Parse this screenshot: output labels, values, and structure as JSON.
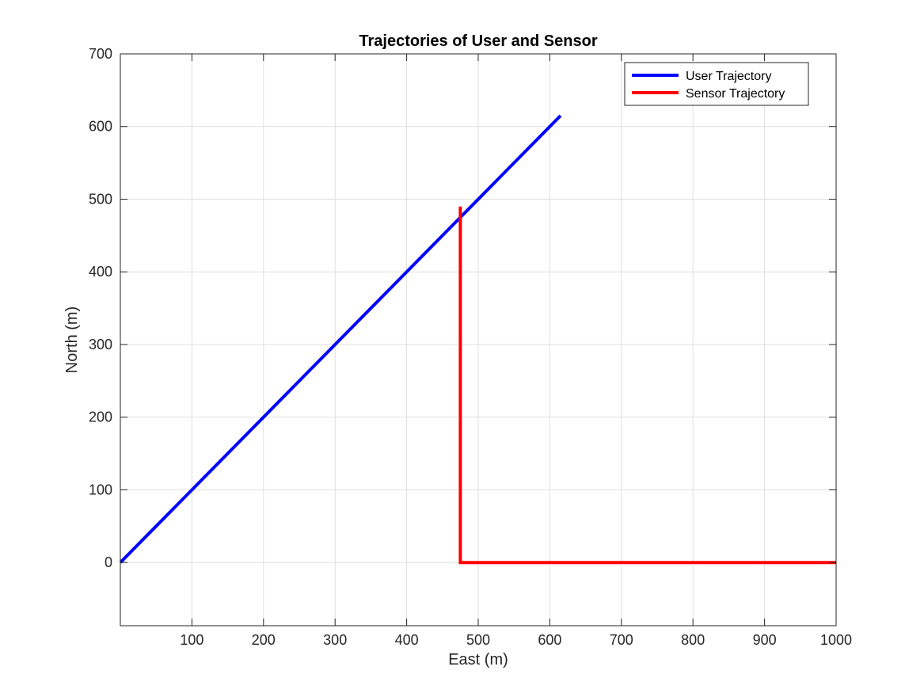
{
  "chart_data": {
    "type": "line",
    "title": "Trajectories of User and Sensor",
    "xlabel": "East (m)",
    "ylabel": "North (m)",
    "xlim": [
      0,
      1000
    ],
    "ylim": [
      -87,
      700
    ],
    "xticks": [
      100,
      200,
      300,
      400,
      500,
      600,
      700,
      800,
      900,
      1000
    ],
    "yticks": [
      0,
      100,
      200,
      300,
      400,
      500,
      600,
      700
    ],
    "grid": true,
    "legend_position": "top-right",
    "series": [
      {
        "name": "User Trajectory",
        "color": "#0000ff",
        "x": [
          0,
          615
        ],
        "y": [
          0,
          615
        ]
      },
      {
        "name": "Sensor Trajectory",
        "color": "#ff0000",
        "x": [
          1000,
          475,
          475
        ],
        "y": [
          0,
          0,
          490
        ]
      }
    ]
  }
}
